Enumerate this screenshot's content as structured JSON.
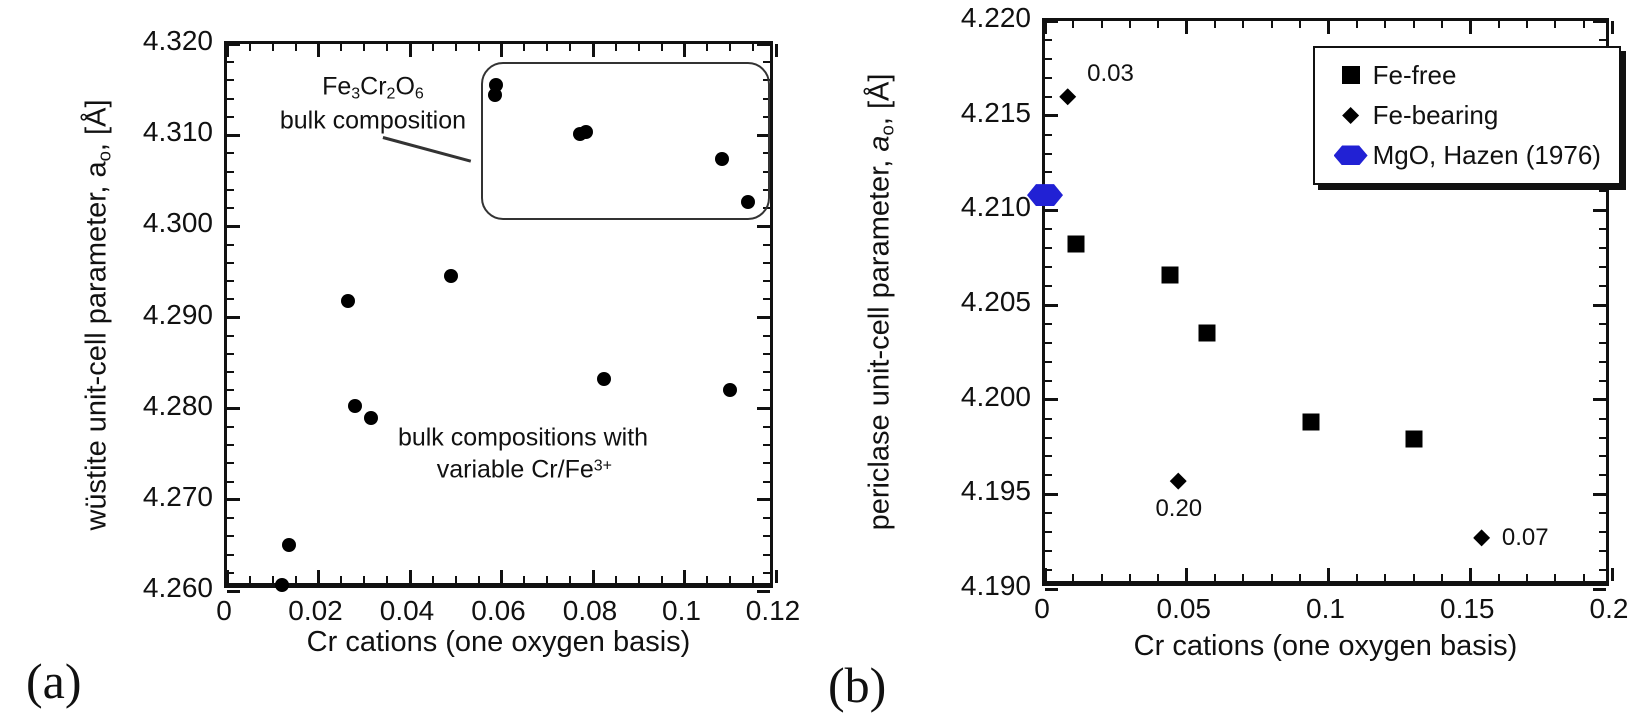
{
  "figure": {
    "panels": [
      {
        "label": "(a)"
      },
      {
        "label": "(b)"
      }
    ]
  },
  "chart_data": [
    {
      "panel": "a",
      "type": "scatter",
      "title": "",
      "xlabel": "Cr cations (one oxygen basis)",
      "ylabel_text": "wüstite unit-cell parameter, ao, [Å]",
      "ylabel_segments": [
        {
          "t": "wüstite unit-cell parameter, a"
        },
        {
          "t": "o",
          "sub": true
        },
        {
          "t": ", [Å]"
        }
      ],
      "xlim": [
        0,
        0.12
      ],
      "ylim": [
        4.26,
        4.32
      ],
      "x_major": 0.02,
      "x_minor": 0.005,
      "y_major": 0.01,
      "y_minor": 0.002,
      "x_tick_labels": [
        "0",
        "0.02",
        "0.04",
        "0.06",
        "0.08",
        "0.1",
        "0.12"
      ],
      "y_tick_labels": [
        "4.260",
        "4.270",
        "4.280",
        "4.290",
        "4.300",
        "4.310",
        "4.320"
      ],
      "grid": false,
      "series": [
        {
          "name": "Fe3Cr2O6 bulk composition",
          "marker": "circle",
          "color": "#000000",
          "size": 14,
          "points": [
            [
              0.0589,
              4.3155
            ],
            [
              0.0585,
              4.3144
            ],
            [
              0.0771,
              4.3101
            ],
            [
              0.0785,
              4.3104
            ],
            [
              0.1081,
              4.3074
            ],
            [
              0.1139,
              4.3027
            ]
          ]
        },
        {
          "name": "bulk compositions with variable Cr/Fe3+",
          "marker": "circle",
          "color": "#000000",
          "size": 14,
          "points": [
            [
              0.012,
              4.2607
            ],
            [
              0.0135,
              4.265
            ],
            [
              0.0265,
              4.2918
            ],
            [
              0.028,
              4.2803
            ],
            [
              0.0315,
              4.279
            ],
            [
              0.049,
              4.2945
            ],
            [
              0.0825,
              4.2833
            ],
            [
              0.11,
              4.282
            ]
          ]
        }
      ],
      "annotations": {
        "box": {
          "x0": 0.0555,
          "y0": 4.3011,
          "x1": 0.1178,
          "y1": 4.318
        },
        "texts": [
          {
            "x": 0.0319,
            "y": 4.3153,
            "size": 25,
            "segments": [
              {
                "t": "Fe"
              },
              {
                "t": "3",
                "sub": true
              },
              {
                "t": "Cr"
              },
              {
                "t": "2",
                "sub": true
              },
              {
                "t": "O"
              },
              {
                "t": "6",
                "sub": true
              }
            ]
          },
          {
            "x": 0.0319,
            "y": 4.3116,
            "size": 25,
            "segments": [
              {
                "t": "bulk composition"
              }
            ]
          },
          {
            "x": 0.0647,
            "y": 4.2768,
            "size": 25,
            "segments": [
              {
                "t": "bulk compositions with"
              }
            ]
          },
          {
            "x": 0.065,
            "y": 4.2733,
            "size": 25,
            "segments": [
              {
                "t": "variable Cr/Fe"
              },
              {
                "t": "3+",
                "sup": true
              }
            ]
          }
        ],
        "lines": [
          {
            "x1": 0.0341,
            "y1": 4.3099,
            "x2": 0.0533,
            "y2": 4.3073
          }
        ]
      }
    },
    {
      "panel": "b",
      "type": "scatter",
      "title": "",
      "xlabel": "Cr cations  (one oxygen basis)",
      "ylabel_text": "periclase unit-cell parameter, ao, [Å]",
      "ylabel_segments": [
        {
          "t": "periclase unit-cell parameter, "
        },
        {
          "t": "a",
          "italic": true
        },
        {
          "t": "o",
          "sub": true
        },
        {
          "t": ", [Å]"
        }
      ],
      "xlim": [
        0,
        0.2
      ],
      "ylim": [
        4.19,
        4.22
      ],
      "x_major": 0.05,
      "x_minor": 0.01,
      "y_major": 0.005,
      "y_minor": 0.001,
      "x_tick_labels": [
        "0",
        "0.05",
        "0.1",
        "0.15",
        "0.2"
      ],
      "y_tick_labels": [
        "4.190",
        "4.195",
        "4.200",
        "4.205",
        "4.210",
        "4.215",
        "4.220"
      ],
      "grid": false,
      "series": [
        {
          "name": "Fe-free",
          "marker": "square",
          "color": "#000000",
          "size": 17,
          "points": [
            [
              0.011,
              4.2082
            ],
            [
              0.044,
              4.2066
            ],
            [
              0.057,
              4.2035
            ],
            [
              0.094,
              4.1988
            ],
            [
              0.13,
              4.1979
            ]
          ]
        },
        {
          "name": "Fe-bearing",
          "marker": "diamond",
          "color": "#000000",
          "size": 17,
          "points": [
            [
              0.008,
              4.216
            ],
            [
              0.047,
              4.1957
            ],
            [
              0.154,
              4.1927
            ]
          ],
          "point_labels": [
            {
              "text": "0.03",
              "x": 0.0231,
              "y": 4.2172
            },
            {
              "text": "0.20",
              "x": 0.0472,
              "y": 4.1942
            },
            {
              "text": "0.07",
              "x": 0.1694,
              "y": 4.1927
            }
          ]
        },
        {
          "name": "MgO, Hazen (1976)",
          "marker": "hexagon",
          "color": "#2121d4",
          "size": 36,
          "points": [
            [
              0.0,
              4.2108
            ]
          ]
        }
      ],
      "legend": {
        "position": {
          "left_frac": 0.472,
          "top_frac": 0.044
        },
        "entries": [
          {
            "label": "Fe-free",
            "marker": "square",
            "color": "#000000"
          },
          {
            "label": "Fe-bearing",
            "marker": "diamond",
            "color": "#000000"
          },
          {
            "label": "MgO, Hazen (1976)",
            "marker": "hexagon",
            "color": "#2121d4"
          }
        ]
      }
    }
  ]
}
